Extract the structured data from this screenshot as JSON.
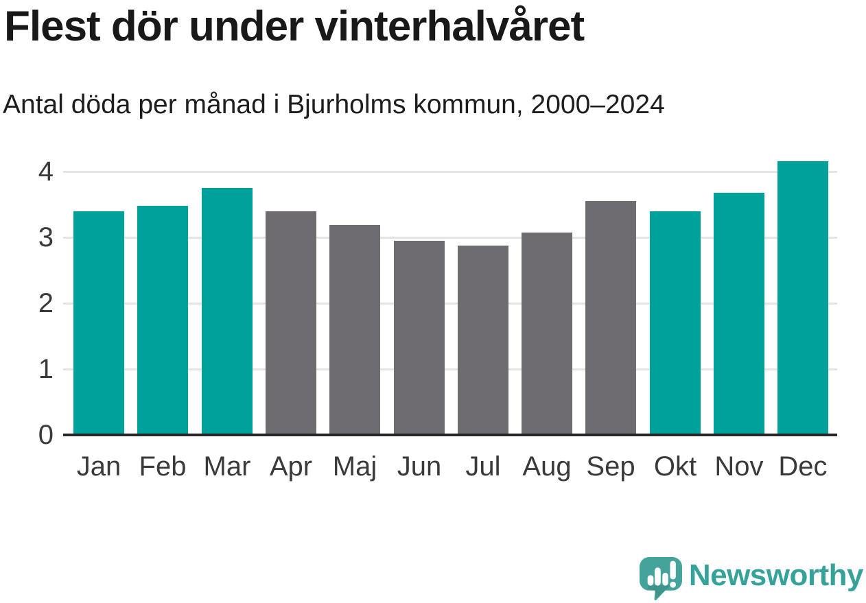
{
  "header": {
    "title": "Flest dör under vinterhalvåret",
    "subtitle": "Antal döda per månad i Bjurholms kommun, 2000–2024"
  },
  "chart_data": {
    "type": "bar",
    "title": "Flest dör under vinterhalvåret",
    "subtitle": "Antal döda per månad i Bjurholms kommun, 2000–2024",
    "categories": [
      "Jan",
      "Feb",
      "Mar",
      "Apr",
      "Maj",
      "Jun",
      "Jul",
      "Aug",
      "Sep",
      "Okt",
      "Nov",
      "Dec"
    ],
    "values": [
      3.4,
      3.48,
      3.75,
      3.4,
      3.19,
      2.95,
      2.88,
      3.07,
      3.55,
      3.4,
      3.68,
      4.16
    ],
    "highlighted_winter_months": [
      true,
      true,
      true,
      false,
      false,
      false,
      false,
      false,
      false,
      true,
      true,
      true
    ],
    "xlabel": "",
    "ylabel": "",
    "yticks": [
      0,
      1,
      2,
      3,
      4
    ],
    "ylim": [
      0,
      4.23
    ],
    "grid": true,
    "legend": "none",
    "colors": {
      "winter_bar": "#00a19a",
      "summer_bar": "#6e6b71",
      "gridline": "#e4e4e4",
      "axis_line": "#27272a",
      "tick_text": "#3a3a3a"
    }
  },
  "branding": {
    "wordmark": "Newsworthy",
    "logo_icon": "speech-bubble-bar-chart-icon",
    "brand_color": "#36a39b"
  }
}
